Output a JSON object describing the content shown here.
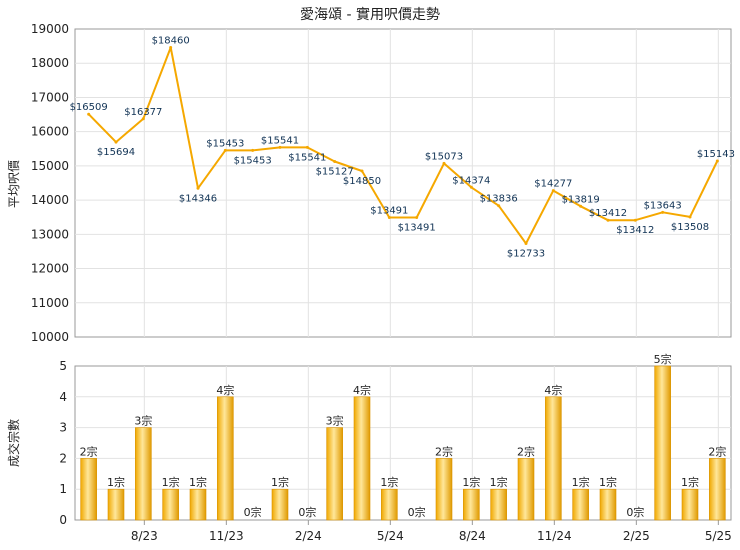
{
  "chart_data": [
    {
      "type": "line",
      "title": "愛海頌 - 實用呎價走勢",
      "ylabel": "平均呎價",
      "xlabel": "",
      "ylim": [
        10000,
        19000
      ],
      "yticks": [
        10000,
        11000,
        12000,
        13000,
        14000,
        15000,
        16000,
        17000,
        18000,
        19000
      ],
      "grid": true,
      "color": "#f5a800",
      "x_tick_labels": [
        "8/23",
        "11/23",
        "2/24",
        "5/24",
        "8/24",
        "11/24",
        "2/25",
        "5/25"
      ],
      "values": [
        16509,
        15694,
        16377,
        18460,
        14346,
        15453,
        15453,
        15541,
        15541,
        15127,
        14850,
        13491,
        13491,
        15073,
        14374,
        13836,
        12733,
        14277,
        13819,
        13412,
        13412,
        13643,
        13508,
        15143
      ],
      "labels": [
        "$16509",
        "$15694",
        "$16377",
        "$18460",
        "$14346",
        "$15453",
        "$15453",
        "$15541",
        "$15541",
        "$15127",
        "$14850",
        "$13491",
        "$13491",
        "$15073",
        "$14374",
        "$13836",
        "$12733",
        "$14277",
        "$13819",
        "$13412",
        "$13412",
        "$13643",
        "$13508",
        "$15143"
      ]
    },
    {
      "type": "bar",
      "ylabel": "成交宗數",
      "xlabel": "",
      "ylim": [
        0,
        5
      ],
      "yticks": [
        0,
        1,
        2,
        3,
        4,
        5
      ],
      "grid": true,
      "color": "#f5a800",
      "x_tick_labels": [
        "8/23",
        "11/23",
        "2/24",
        "5/24",
        "8/24",
        "11/24",
        "2/25",
        "5/25"
      ],
      "values": [
        2,
        1,
        3,
        1,
        1,
        4,
        0,
        1,
        0,
        3,
        4,
        1,
        0,
        2,
        1,
        1,
        2,
        4,
        1,
        1,
        0,
        5,
        1,
        2
      ],
      "labels": [
        "2宗",
        "1宗",
        "3宗",
        "1宗",
        "1宗",
        "4宗",
        "0宗",
        "1宗",
        "0宗",
        "3宗",
        "4宗",
        "1宗",
        "0宗",
        "2宗",
        "1宗",
        "1宗",
        "2宗",
        "4宗",
        "1宗",
        "1宗",
        "0宗",
        "5宗",
        "1宗",
        "2宗"
      ]
    }
  ]
}
